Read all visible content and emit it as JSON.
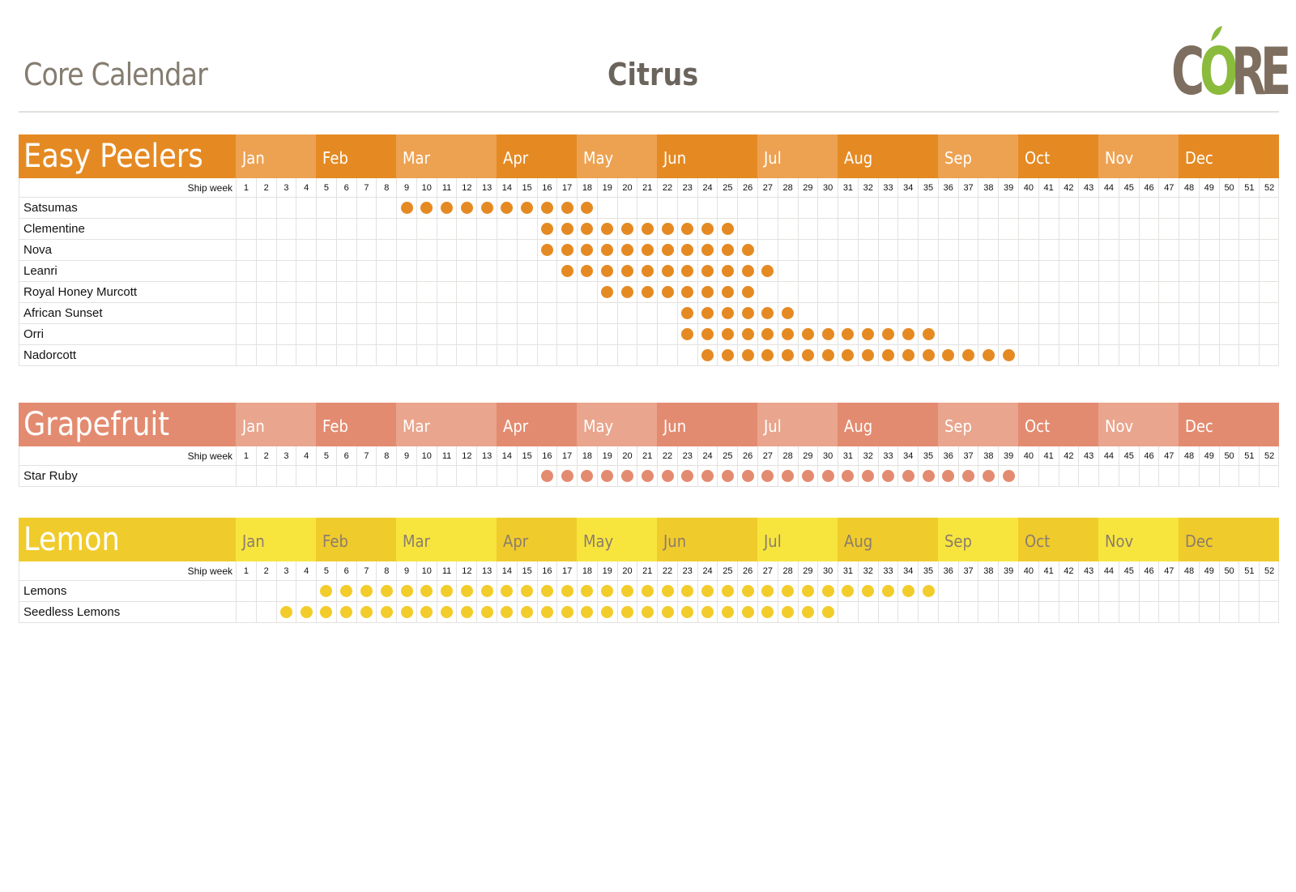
{
  "header": {
    "title": "Core Calendar",
    "category": "Citrus",
    "logo": {
      "text": "CORE",
      "colors": {
        "letters": "#7d6e5f",
        "accent": "#8bbb3c"
      }
    }
  },
  "months": [
    "Jan",
    "Feb",
    "Mar",
    "Apr",
    "May",
    "Jun",
    "Jul",
    "Aug",
    "Sep",
    "Oct",
    "Nov",
    "Dec"
  ],
  "month_weeks": [
    4,
    4,
    5,
    4,
    4,
    5,
    4,
    5,
    4,
    4,
    4,
    5
  ],
  "week_label": "Ship week",
  "sections": [
    {
      "name": "Easy Peelers",
      "colors": {
        "dark": "#e58a23",
        "light": "#eda252",
        "text_on_month": "#ffffff",
        "dot": "#e58a23"
      },
      "items": [
        {
          "name": "Satsumas",
          "weeks": [
            9,
            10,
            11,
            12,
            13,
            14,
            15,
            16,
            17,
            18
          ]
        },
        {
          "name": "Clementine",
          "weeks": [
            16,
            17,
            18,
            19,
            20,
            21,
            22,
            23,
            24,
            25
          ]
        },
        {
          "name": "Nova",
          "weeks": [
            16,
            17,
            18,
            19,
            20,
            21,
            22,
            23,
            24,
            25,
            26
          ]
        },
        {
          "name": "Leanri",
          "weeks": [
            17,
            18,
            19,
            20,
            21,
            22,
            23,
            24,
            25,
            26,
            27
          ]
        },
        {
          "name": "Royal Honey Murcott",
          "weeks": [
            19,
            20,
            21,
            22,
            23,
            24,
            25,
            26
          ]
        },
        {
          "name": "African Sunset",
          "weeks": [
            23,
            24,
            25,
            26,
            27,
            28
          ]
        },
        {
          "name": "Orri",
          "weeks": [
            23,
            24,
            25,
            26,
            27,
            28,
            29,
            30,
            31,
            32,
            33,
            34,
            35
          ]
        },
        {
          "name": "Nadorcott",
          "weeks": [
            24,
            25,
            26,
            27,
            28,
            29,
            30,
            31,
            32,
            33,
            34,
            35,
            36,
            37,
            38,
            39
          ]
        }
      ]
    },
    {
      "name": "Grapefruit",
      "colors": {
        "dark": "#e38b70",
        "light": "#e9a58d",
        "text_on_month": "#ffffff",
        "dot": "#e38b70"
      },
      "items": [
        {
          "name": "Star Ruby",
          "weeks": [
            16,
            17,
            18,
            19,
            20,
            21,
            22,
            23,
            24,
            25,
            26,
            27,
            28,
            29,
            30,
            31,
            32,
            33,
            34,
            35,
            36,
            37,
            38,
            39
          ]
        }
      ]
    },
    {
      "name": "Lemon",
      "colors": {
        "dark": "#f0cb2c",
        "light": "#f7e53e",
        "text_on_month": "#8b7d6c",
        "dot": "#f2cc2b"
      },
      "items": [
        {
          "name": "Lemons",
          "weeks": [
            5,
            6,
            7,
            8,
            9,
            10,
            11,
            12,
            13,
            14,
            15,
            16,
            17,
            18,
            19,
            20,
            21,
            22,
            23,
            24,
            25,
            26,
            27,
            28,
            29,
            30,
            31,
            32,
            33,
            34,
            35
          ]
        },
        {
          "name": "Seedless Lemons",
          "weeks": [
            3,
            4,
            5,
            6,
            7,
            8,
            9,
            10,
            11,
            12,
            13,
            14,
            15,
            16,
            17,
            18,
            19,
            20,
            21,
            22,
            23,
            24,
            25,
            26,
            27,
            28,
            29,
            30
          ]
        }
      ]
    }
  ]
}
